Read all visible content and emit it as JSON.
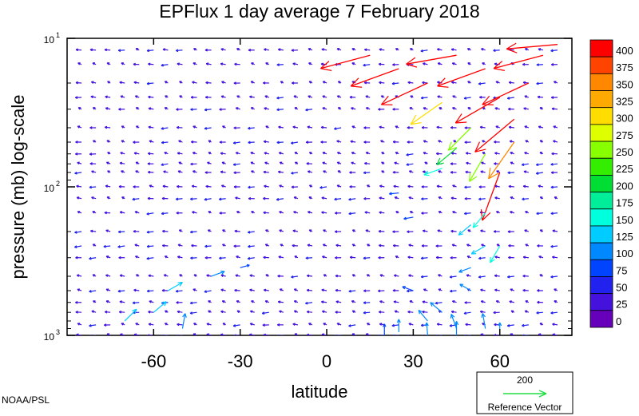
{
  "chart_data": {
    "type": "vector-field",
    "title": "EPFlux  1 day average  7 February 2018",
    "xlabel": "latitude",
    "ylabel": "pressure (mb)  log-scale",
    "x_ticks": [
      "-60",
      "-30",
      "0",
      "30",
      "60"
    ],
    "x_tick_values": [
      -60,
      -30,
      0,
      30,
      60
    ],
    "xlim": [
      -90,
      85
    ],
    "y_scale": "log",
    "y_ticks": [
      {
        "base": "10",
        "exp": "1",
        "value": 10
      },
      {
        "base": "10",
        "exp": "2",
        "value": 100
      },
      {
        "base": "10",
        "exp": "3",
        "value": 1000
      }
    ],
    "ylim": [
      1000,
      10
    ],
    "colorbar": {
      "labels": [
        "400",
        "375",
        "350",
        "325",
        "300",
        "275",
        "250",
        "225",
        "200",
        "175",
        "150",
        "125",
        "100",
        "75",
        "50",
        "25",
        "0"
      ],
      "colors": [
        "#ff0000",
        "#ff4400",
        "#ff8800",
        "#ffaa00",
        "#ffdd00",
        "#ddff00",
        "#88ff00",
        "#33ee00",
        "#00dd33",
        "#00ee99",
        "#00ffdd",
        "#00ccff",
        "#0088ff",
        "#0044ff",
        "#2222ee",
        "#4411dd",
        "#6600bb"
      ]
    },
    "reference_vector": {
      "value": "200",
      "label": "Reference Vector",
      "color": "#22dd44"
    },
    "credit": "NOAA/PSL",
    "strong_flux_region": {
      "lat_range": [
        10,
        85
      ],
      "pressure_range": [
        10,
        120
      ],
      "description_vectors": [
        {
          "lat": 15,
          "p": 13,
          "mag": 400,
          "dir_deg": 195
        },
        {
          "lat": 25,
          "p": 16,
          "mag": 400,
          "dir_deg": 200
        },
        {
          "lat": 35,
          "p": 20,
          "mag": 400,
          "dir_deg": 205
        },
        {
          "lat": 45,
          "p": 13,
          "mag": 400,
          "dir_deg": 190
        },
        {
          "lat": 55,
          "p": 16,
          "mag": 400,
          "dir_deg": 200
        },
        {
          "lat": 60,
          "p": 25,
          "mag": 400,
          "dir_deg": 210
        },
        {
          "lat": 65,
          "p": 35,
          "mag": 400,
          "dir_deg": 220
        },
        {
          "lat": 70,
          "p": 20,
          "mag": 400,
          "dir_deg": 205
        },
        {
          "lat": 75,
          "p": 13,
          "mag": 400,
          "dir_deg": 195
        },
        {
          "lat": 80,
          "p": 11,
          "mag": 400,
          "dir_deg": 185
        },
        {
          "lat": 40,
          "p": 27,
          "mag": 300,
          "dir_deg": 215
        },
        {
          "lat": 50,
          "p": 40,
          "mag": 250,
          "dir_deg": 225
        },
        {
          "lat": 55,
          "p": 60,
          "mag": 250,
          "dir_deg": 240
        },
        {
          "lat": 60,
          "p": 80,
          "mag": 400,
          "dir_deg": 250
        },
        {
          "lat": 65,
          "p": 50,
          "mag": 350,
          "dir_deg": 235
        },
        {
          "lat": 45,
          "p": 55,
          "mag": 200,
          "dir_deg": 220
        },
        {
          "lat": 40,
          "p": 75,
          "mag": 150,
          "dir_deg": 200
        },
        {
          "lat": 55,
          "p": 150,
          "mag": 150,
          "dir_deg": 230
        },
        {
          "lat": 50,
          "p": 180,
          "mag": 125,
          "dir_deg": 220
        },
        {
          "lat": 30,
          "p": 160,
          "mag": 75,
          "dir_deg": 190
        },
        {
          "lat": 25,
          "p": 110,
          "mag": 75,
          "dir_deg": 185
        }
      ]
    },
    "lower_flux": [
      {
        "lat": -70,
        "p": 800,
        "mag": 130,
        "dir_deg": 45
      },
      {
        "lat": -60,
        "p": 700,
        "mag": 130,
        "dir_deg": 40
      },
      {
        "lat": -55,
        "p": 500,
        "mag": 130,
        "dir_deg": 30
      },
      {
        "lat": -40,
        "p": 400,
        "mag": 110,
        "dir_deg": 20
      },
      {
        "lat": -30,
        "p": 350,
        "mag": 75,
        "dir_deg": 15
      },
      {
        "lat": -50,
        "p": 900,
        "mag": 120,
        "dir_deg": 80
      },
      {
        "lat": 35,
        "p": 800,
        "mag": 110,
        "dir_deg": 130
      },
      {
        "lat": 40,
        "p": 700,
        "mag": 120,
        "dir_deg": 140
      },
      {
        "lat": 45,
        "p": 900,
        "mag": 120,
        "dir_deg": 110
      },
      {
        "lat": 30,
        "p": 500,
        "mag": 90,
        "dir_deg": 160
      },
      {
        "lat": 50,
        "p": 500,
        "mag": 100,
        "dir_deg": 150
      },
      {
        "lat": 55,
        "p": 900,
        "mag": 120,
        "dir_deg": 100
      },
      {
        "lat": 25,
        "p": 950,
        "mag": 100,
        "dir_deg": 90
      },
      {
        "lat": 20,
        "p": 1000,
        "mag": 90,
        "dir_deg": 90
      },
      {
        "lat": 35,
        "p": 1000,
        "mag": 100,
        "dir_deg": 95
      },
      {
        "lat": 45,
        "p": 1000,
        "mag": 110,
        "dir_deg": 90
      },
      {
        "lat": 60,
        "p": 1000,
        "mag": 100,
        "dir_deg": 90
      },
      {
        "lat": 55,
        "p": 250,
        "mag": 125,
        "dir_deg": 210
      },
      {
        "lat": 60,
        "p": 250,
        "mag": 150,
        "dir_deg": 240
      },
      {
        "lat": 50,
        "p": 350,
        "mag": 100,
        "dir_deg": 200
      }
    ]
  }
}
